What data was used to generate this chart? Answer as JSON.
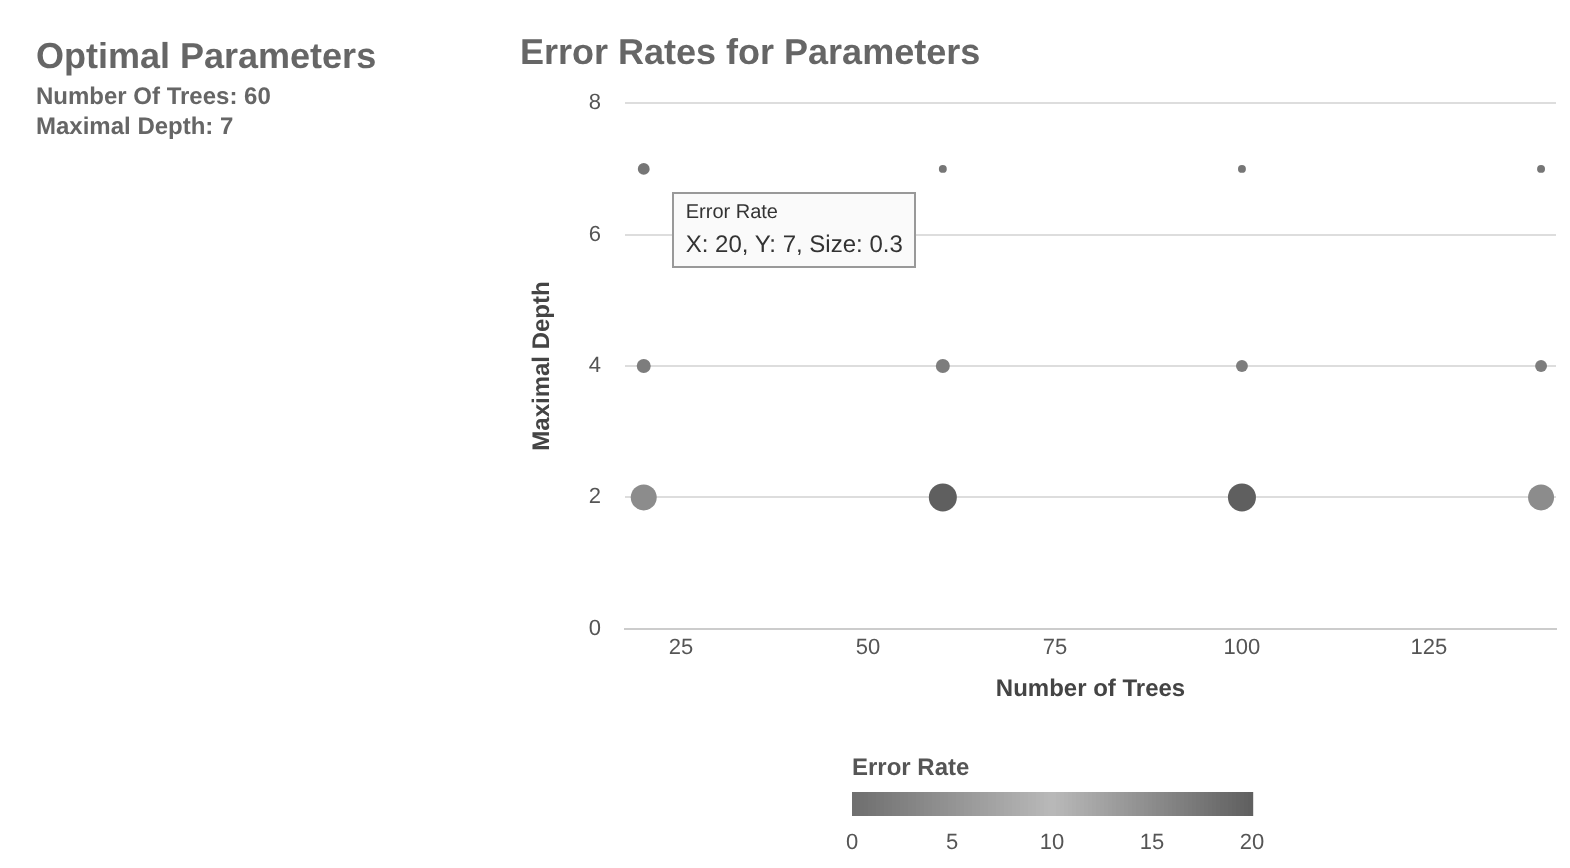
{
  "chart_data": [
    {
      "type": "other",
      "title": "Optimal Parameters",
      "annotations": [
        "Number Of Trees: 60",
        "Maximal Depth: 7"
      ]
    },
    {
      "type": "bubble",
      "title": "Error Rates for Parameters",
      "xlabel": "Number of Trees",
      "ylabel": "Maximal Depth",
      "clabel": "Error Rate",
      "x": [
        20,
        60,
        100,
        140,
        20,
        60,
        100,
        140,
        20,
        60,
        100,
        140
      ],
      "values": [
        7,
        7,
        7,
        7,
        4,
        4,
        4,
        4,
        2,
        2,
        2,
        2
      ],
      "sizes": [
        0.18,
        0.08,
        0.08,
        0.08,
        0.25,
        0.25,
        0.18,
        0.18,
        0.86,
        1,
        1,
        0.86
      ],
      "cvalues": [
        1,
        1,
        1,
        1,
        2,
        2,
        2,
        2,
        15,
        20,
        20,
        15
      ],
      "clim": [
        0,
        20
      ],
      "cticks": [
        0,
        5,
        10,
        15,
        20
      ],
      "xlim": [
        17.5,
        142
      ],
      "xticks": [
        25,
        50,
        75,
        100,
        125
      ],
      "ylim": [
        0,
        8
      ],
      "yticks": [
        0,
        2,
        4,
        6,
        8
      ],
      "grid": "y",
      "legend": false,
      "annotations": [
        {
          "text": "Error Rate\nX: 20, Y: 7, Size: 0.3",
          "x": 20,
          "y": 7
        }
      ]
    }
  ]
}
